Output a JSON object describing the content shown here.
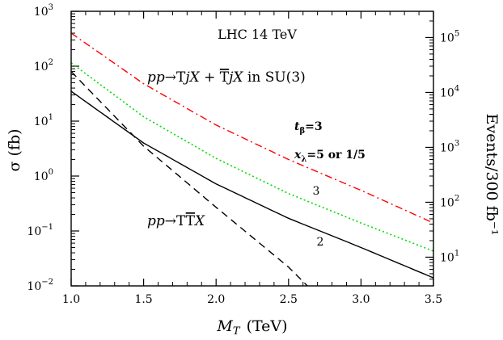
{
  "chart_data": {
    "type": "line",
    "xlabel": "M_T (TeV)",
    "xlabel_main": "M",
    "xlabel_sub": "T",
    "xlabel_unit": "(TeV)",
    "ylabel": "σ (fb)",
    "ylabel_right": "Events/300 fb⁻¹",
    "xlim": [
      1.0,
      3.5
    ],
    "ylim": [
      0.01,
      1000
    ],
    "yscale": "log",
    "y2lim": [
      3,
      300000
    ],
    "y2scale": "log",
    "grid": false,
    "x_ticks": [
      1.0,
      1.5,
      2.0,
      2.5,
      3.0,
      3.5
    ],
    "x_tick_labels": [
      "1.0",
      "1.5",
      "2.0",
      "2.5",
      "3.0",
      "3.5"
    ],
    "y_ticks": [
      {
        "value": 0.01,
        "base": "10",
        "exp": "−2"
      },
      {
        "value": 0.1,
        "base": "10",
        "exp": "−1"
      },
      {
        "value": 1,
        "base": "10",
        "exp": "0"
      },
      {
        "value": 10,
        "base": "10",
        "exp": "1"
      },
      {
        "value": 100,
        "base": "10",
        "exp": "2"
      },
      {
        "value": 1000,
        "base": "10",
        "exp": "3"
      }
    ],
    "y2_ticks": [
      {
        "value": 10,
        "base": "10",
        "exp": "1"
      },
      {
        "value": 100,
        "base": "10",
        "exp": "2"
      },
      {
        "value": 1000,
        "base": "10",
        "exp": "3"
      },
      {
        "value": 10000,
        "base": "10",
        "exp": "4"
      },
      {
        "value": 100000,
        "base": "10",
        "exp": "5"
      }
    ],
    "annotations": {
      "collider": "LHC 14 TeV",
      "single_process": "pp→TjX + T̄jX in SU(3)",
      "single_process_parts": [
        "pp",
        "→T",
        "jX",
        " + ",
        "T",
        "jX",
        " in SU(3)"
      ],
      "pair_process": "pp→TT̄X",
      "pair_process_parts": [
        "pp",
        "→T",
        "T",
        "X"
      ],
      "tbeta": "t_β=3",
      "tbeta_parts": [
        "t",
        "β",
        "=3"
      ],
      "xlambda": "x_λ=5 or 1/5",
      "xlambda_parts": [
        "x",
        "λ",
        "=5 or 1/5"
      ],
      "label_3": "3",
      "label_2": "2"
    },
    "series": [
      {
        "color": "#ff0000",
        "dash": "dashdot",
        "x": [
          1.0,
          1.5,
          2.0,
          2.5,
          3.0,
          3.5
        ],
        "y": [
          400,
          48,
          8.5,
          2.0,
          0.55,
          0.14
        ]
      },
      {
        "color": "#00dd00",
        "dash": "dot",
        "x": [
          1.0,
          1.5,
          2.0,
          2.5,
          3.0,
          3.5
        ],
        "y": [
          115,
          12,
          2.1,
          0.48,
          0.14,
          0.043
        ]
      },
      {
        "color": "#000000",
        "dash": "solid",
        "x": [
          1.0,
          1.5,
          2.0,
          2.5,
          3.0,
          3.5
        ],
        "y": [
          35,
          4.0,
          0.72,
          0.17,
          0.05,
          0.014
        ]
      },
      {
        "color": "#000000",
        "dash": "dash",
        "x": [
          1.0,
          1.5,
          2.0,
          2.5,
          2.63
        ],
        "y": [
          80,
          3.5,
          0.27,
          0.022,
          0.01
        ]
      }
    ]
  }
}
